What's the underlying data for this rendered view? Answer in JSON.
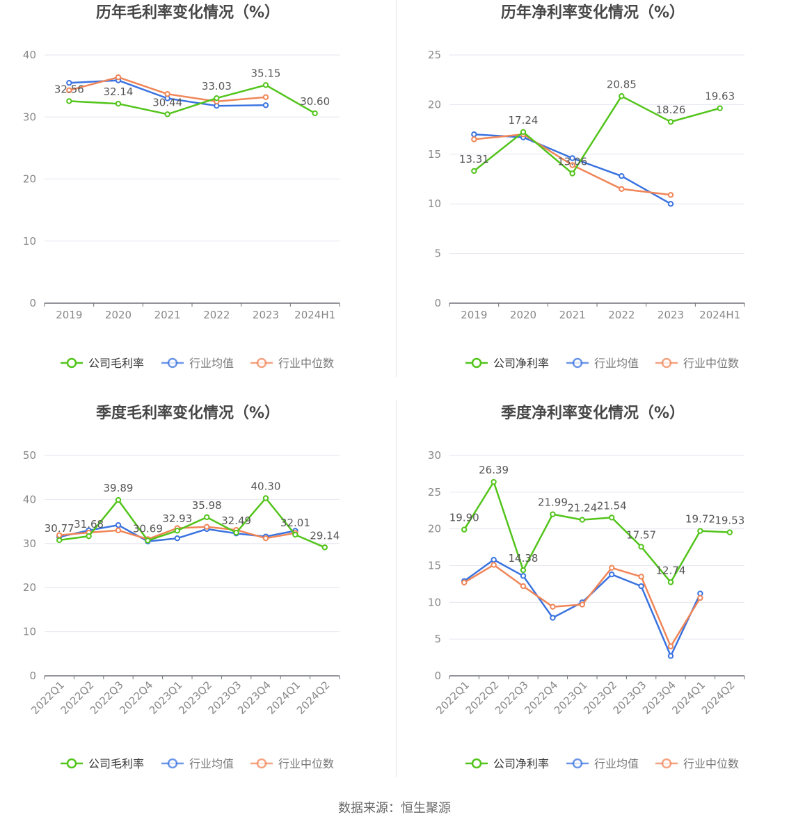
{
  "colors": {
    "company": "#52c41a",
    "avg": "#3a73e0",
    "median": "#f08557",
    "grid": "#e3e6ef",
    "axis": "#6e7079",
    "tick": "#888888",
    "label": "#555555",
    "title": "#464646"
  },
  "source_text": "数据来源：恒生聚源",
  "chart_data": [
    {
      "type": "line",
      "title": "历年毛利率变化情况（%）",
      "categories": [
        "2019",
        "2020",
        "2021",
        "2022",
        "2023",
        "2024H1"
      ],
      "ylim": [
        0,
        40
      ],
      "yticks": [
        0,
        10,
        20,
        30,
        40
      ],
      "grid": true,
      "legend_position": "bottom",
      "series": [
        {
          "name": "公司毛利率",
          "key": "company",
          "values": [
            32.56,
            32.14,
            30.44,
            33.03,
            35.15,
            30.6
          ],
          "labels": [
            "32.56",
            "32.14",
            "30.44",
            "33.03",
            "35.15",
            "30.60"
          ]
        },
        {
          "name": "行业均值",
          "key": "avg",
          "values": [
            35.5,
            35.9,
            33.0,
            31.8,
            31.9,
            null
          ]
        },
        {
          "name": "行业中位数",
          "key": "median",
          "values": [
            34.3,
            36.4,
            33.7,
            32.5,
            33.2,
            null
          ]
        }
      ]
    },
    {
      "type": "line",
      "title": "历年净利率变化情况（%）",
      "categories": [
        "2019",
        "2020",
        "2021",
        "2022",
        "2023",
        "2024H1"
      ],
      "ylim": [
        0,
        25
      ],
      "yticks": [
        0,
        5,
        10,
        15,
        20,
        25
      ],
      "grid": true,
      "legend_position": "bottom",
      "series": [
        {
          "name": "公司净利率",
          "key": "company",
          "values": [
            13.31,
            17.24,
            13.06,
            20.85,
            18.26,
            19.63
          ],
          "labels": [
            "13.31",
            "17.24",
            "13.06",
            "20.85",
            "18.26",
            "19.63"
          ]
        },
        {
          "name": "行业均值",
          "key": "avg",
          "values": [
            17.0,
            16.7,
            14.6,
            12.8,
            10.0,
            null
          ]
        },
        {
          "name": "行业中位数",
          "key": "median",
          "values": [
            16.5,
            17.0,
            13.9,
            11.5,
            10.9,
            null
          ]
        }
      ]
    },
    {
      "type": "line",
      "title": "季度毛利率变化情况（%）",
      "categories": [
        "2022Q1",
        "2022Q2",
        "2022Q3",
        "2022Q4",
        "2023Q1",
        "2023Q2",
        "2023Q3",
        "2023Q4",
        "2024Q1",
        "2024Q2"
      ],
      "rotate_x_labels": true,
      "ylim": [
        0,
        50
      ],
      "yticks": [
        0,
        10,
        20,
        30,
        40,
        50
      ],
      "grid": true,
      "legend_position": "bottom",
      "series": [
        {
          "name": "公司毛利率",
          "key": "company",
          "values": [
            30.77,
            31.68,
            39.89,
            30.69,
            32.93,
            35.98,
            32.49,
            40.3,
            32.01,
            29.14
          ],
          "labels": [
            "30.77",
            "31.68",
            "39.89",
            "30.69",
            "32.93",
            "35.98",
            "32.49",
            "40.30",
            "32.01",
            "29.14"
          ]
        },
        {
          "name": "行业均值",
          "key": "avg",
          "values": [
            31.5,
            33.0,
            34.2,
            30.5,
            31.2,
            33.3,
            32.3,
            31.6,
            32.9,
            null
          ]
        },
        {
          "name": "行业中位数",
          "key": "median",
          "values": [
            31.9,
            32.5,
            33.0,
            31.0,
            33.5,
            33.8,
            33.1,
            31.2,
            32.4,
            null
          ]
        }
      ]
    },
    {
      "type": "line",
      "title": "季度净利率变化情况（%）",
      "categories": [
        "2022Q1",
        "2022Q2",
        "2022Q3",
        "2022Q4",
        "2023Q1",
        "2023Q2",
        "2023Q3",
        "2023Q4",
        "2024Q1",
        "2024Q2"
      ],
      "rotate_x_labels": true,
      "ylim": [
        0,
        30
      ],
      "yticks": [
        0,
        5,
        10,
        15,
        20,
        25,
        30
      ],
      "grid": true,
      "legend_position": "bottom",
      "series": [
        {
          "name": "公司净利率",
          "key": "company",
          "values": [
            19.9,
            26.39,
            14.38,
            21.99,
            21.24,
            21.54,
            17.57,
            12.74,
            19.72,
            19.53
          ],
          "labels": [
            "19.90",
            "26.39",
            "14.38",
            "21.99",
            "21.24",
            "21.54",
            "17.57",
            "12.74",
            "19.72",
            "19.53"
          ]
        },
        {
          "name": "行业均值",
          "key": "avg",
          "values": [
            12.9,
            15.8,
            13.6,
            7.9,
            10.0,
            13.8,
            12.2,
            2.7,
            11.2,
            null
          ]
        },
        {
          "name": "行业中位数",
          "key": "median",
          "values": [
            12.7,
            15.1,
            12.2,
            9.4,
            9.7,
            14.7,
            13.5,
            4.0,
            10.6,
            null
          ]
        }
      ]
    }
  ]
}
